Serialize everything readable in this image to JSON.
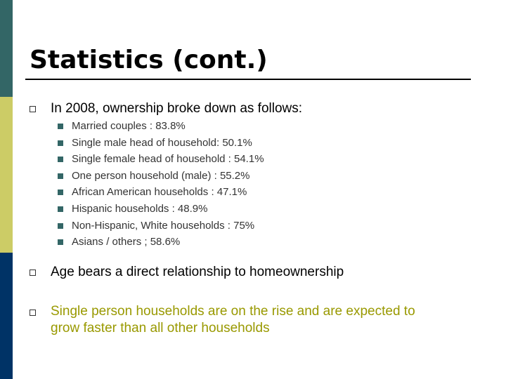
{
  "slide": {
    "title": "Statistics  (cont.)",
    "colors": {
      "band_top": "#336666",
      "band_middle": "#CCCC66",
      "band_bottom": "#003366",
      "accent_text": "#999900",
      "sub_bullet": "#336666"
    },
    "intro": "In 2008, ownership broke down as follows:",
    "breakdown": [
      "Married couples : 83.8%",
      "Single male head of household: 50.1%",
      "Single female head of household : 54.1%",
      "One person household (male) : 55.2%",
      "African American households : 47.1%",
      "Hispanic households : 48.9%",
      "Non-Hispanic, White households : 75%",
      "Asians / others ; 58.6%"
    ],
    "point2": "Age bears a direct relationship to homeownership",
    "point3_line1": "Single person households are on the rise and are expected to",
    "point3_line2": "grow faster than all other households"
  }
}
